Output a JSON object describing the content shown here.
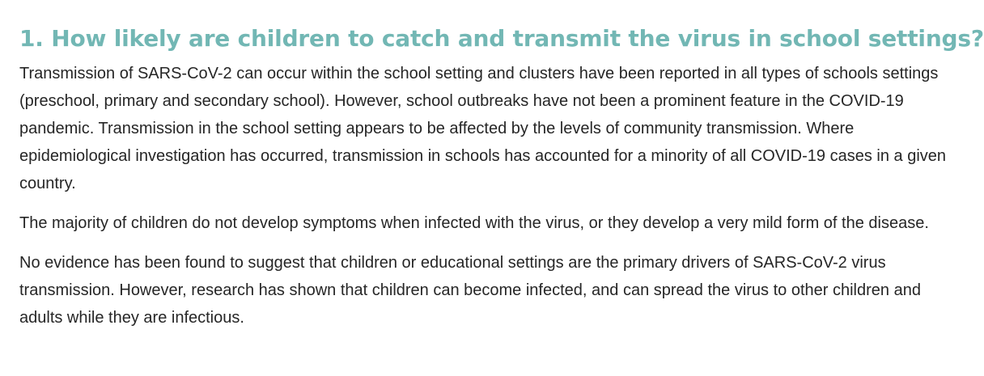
{
  "section": {
    "heading": "1. How likely are children to catch and transmit the virus in school settings?",
    "paragraphs": [
      "Transmission of SARS-CoV-2 can occur within the school setting and clusters have been reported in all types of schools settings (preschool, primary and secondary school). However, school outbreaks have not been a prominent feature in the COVID-19 pandemic. Transmission in the school setting appears to be affected by the levels of community transmission. Where epidemiological investigation has occurred, transmission in schools has accounted for a minority of all COVID-19 cases in a given country.",
      "The majority of children do not develop symptoms when infected with the virus, or they develop a very mild form of the disease.",
      "No evidence has been found to suggest that children or educational settings are the primary drivers of SARS-CoV-2 virus transmission. However, research has shown that children can become infected, and can spread the virus to other children and adults while they are infectious."
    ]
  },
  "colors": {
    "heading": "#72b7b4",
    "body_text": "#262626",
    "background": "#ffffff"
  }
}
